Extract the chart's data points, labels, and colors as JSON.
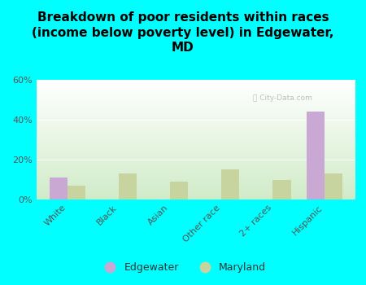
{
  "title": "Breakdown of poor residents within races\n(income below poverty level) in Edgewater,\nMD",
  "categories": [
    "White",
    "Black",
    "Asian",
    "Other race",
    "2+ races",
    "Hispanic"
  ],
  "edgewater_values": [
    11,
    0,
    0,
    0,
    0,
    44
  ],
  "maryland_values": [
    7,
    13,
    9,
    15,
    10,
    13
  ],
  "edgewater_color": "#c9a8d4",
  "maryland_color": "#c8d4a0",
  "background_color": "#00ffff",
  "plot_bg_top": "#ffffff",
  "plot_bg_bottom": "#d4edcc",
  "ylim": [
    0,
    60
  ],
  "yticks": [
    0,
    20,
    40,
    60
  ],
  "ytick_labels": [
    "0%",
    "20%",
    "40%",
    "60%"
  ],
  "bar_width": 0.35,
  "title_fontsize": 11,
  "tick_fontsize": 8,
  "legend_fontsize": 9
}
